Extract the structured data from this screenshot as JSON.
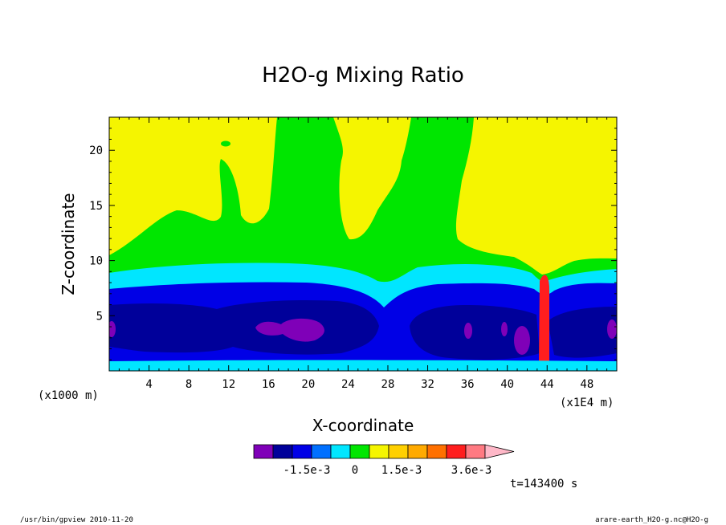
{
  "chart_data": {
    "type": "contour",
    "title": "H2O-g Mixing Ratio",
    "xlabel": "X-coordinate",
    "ylabel": "Z-coordinate",
    "x_units_left": "(x1000 m)",
    "x_units_right": "(x1E4 m)",
    "xlim": [
      0,
      51
    ],
    "ylim": [
      0,
      23
    ],
    "x_ticks": [
      "4",
      "8",
      "12",
      "16",
      "20",
      "24",
      "28",
      "32",
      "36",
      "40",
      "44",
      "48"
    ],
    "y_ticks": [
      "5",
      "10",
      "15",
      "20"
    ],
    "colorbar": {
      "labels": [
        "-1.5e-3",
        "0",
        "1.5e-3",
        "3.6e-3"
      ],
      "colors": [
        "#7f00b8",
        "#00009a",
        "#0000e6",
        "#0070ff",
        "#00e6ff",
        "#00e600",
        "#f5f500",
        "#ffd000",
        "#ffaa00",
        "#ff7000",
        "#ff1e1e",
        "#ff7a82",
        "#ffb8c8"
      ]
    },
    "field_colors": {
      "top": "#f5f500",
      "upper": "#00e600",
      "cyan": "#00e6ff",
      "blue": "#0000e6",
      "navy": "#00009a",
      "purple": "#7f00b8",
      "hot": "#ff1e1e"
    },
    "time_label": "t=143400 s"
  },
  "footer": {
    "left": "/usr/bin/gpview  2010-11-20",
    "right": "arare-earth_H2O-g.nc@H2O-g"
  }
}
